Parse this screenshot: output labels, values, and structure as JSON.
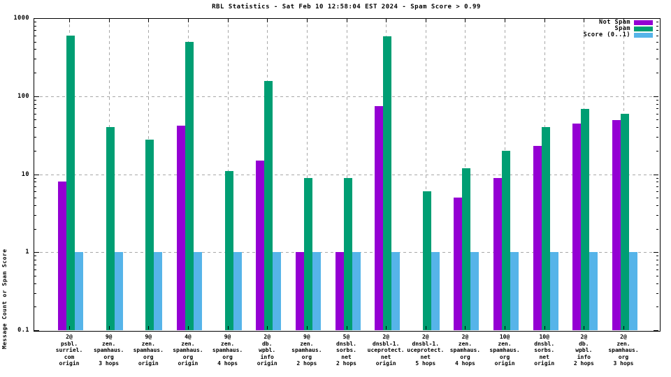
{
  "chart_data": {
    "type": "bar",
    "title": "RBL Statistics - Sat Feb 10 12:58:04 EST 2024 - Spam Score > 0.99",
    "ylabel": "Message Count or Spam Score",
    "xlabel": "",
    "yscale": "log",
    "ylim": [
      0.1,
      1000
    ],
    "ytick_values": [
      0.1,
      1,
      10,
      100,
      1000
    ],
    "ytick_labels": [
      "0.1",
      "1",
      "10",
      "100",
      "1000"
    ],
    "grid": true,
    "grid_color": "#a8a8a8",
    "legend_position": "top-right",
    "categories": [
      [
        "2@",
        "psbl.",
        "surriel.",
        "com",
        "origin"
      ],
      [
        "9@",
        "zen.",
        "spamhaus.",
        "org",
        "3 hops"
      ],
      [
        "9@",
        "zen.",
        "spamhaus.",
        "org",
        "origin"
      ],
      [
        "4@",
        "zen.",
        "spamhaus.",
        "org",
        "origin"
      ],
      [
        "9@",
        "zen.",
        "spamhaus.",
        "org",
        "4 hops"
      ],
      [
        "2@",
        "db.",
        "wpbl.",
        "info",
        "origin"
      ],
      [
        "9@",
        "zen.",
        "spamhaus.",
        "org",
        "2 hops"
      ],
      [
        "5@",
        "dnsbl.",
        "sorbs.",
        "net",
        "2 hops"
      ],
      [
        "2@",
        "dnsbl-1.",
        "uceprotect.",
        "net",
        "origin"
      ],
      [
        "2@",
        "dnsbl-1.",
        "uceprotect.",
        "net",
        "5 hops"
      ],
      [
        "2@",
        "zen.",
        "spamhaus.",
        "org",
        "4 hops"
      ],
      [
        "10@",
        "zen.",
        "spamhaus.",
        "org",
        "origin"
      ],
      [
        "10@",
        "dnsbl.",
        "sorbs.",
        "net",
        "origin"
      ],
      [
        "2@",
        "db.",
        "wpbl.",
        "info",
        "2 hops"
      ],
      [
        "2@",
        "zen.",
        "spamhaus.",
        "org",
        "3 hops"
      ]
    ],
    "series": [
      {
        "name": "Not Spam",
        "color": "#9400d3",
        "values": [
          8,
          null,
          null,
          42,
          null,
          15,
          1,
          1,
          74,
          null,
          5,
          9,
          23,
          45,
          49
        ]
      },
      {
        "name": "Spam",
        "color": "#009e73",
        "values": [
          600,
          40,
          28,
          500,
          11,
          155,
          9,
          9,
          580,
          6,
          12,
          20,
          40,
          68,
          60
        ]
      },
      {
        "name": "Score (0..1)",
        "color": "#56b4e9",
        "values": [
          1,
          1,
          1,
          1,
          1,
          1,
          1,
          1,
          1,
          1,
          1,
          1,
          1,
          1,
          1
        ]
      }
    ]
  }
}
